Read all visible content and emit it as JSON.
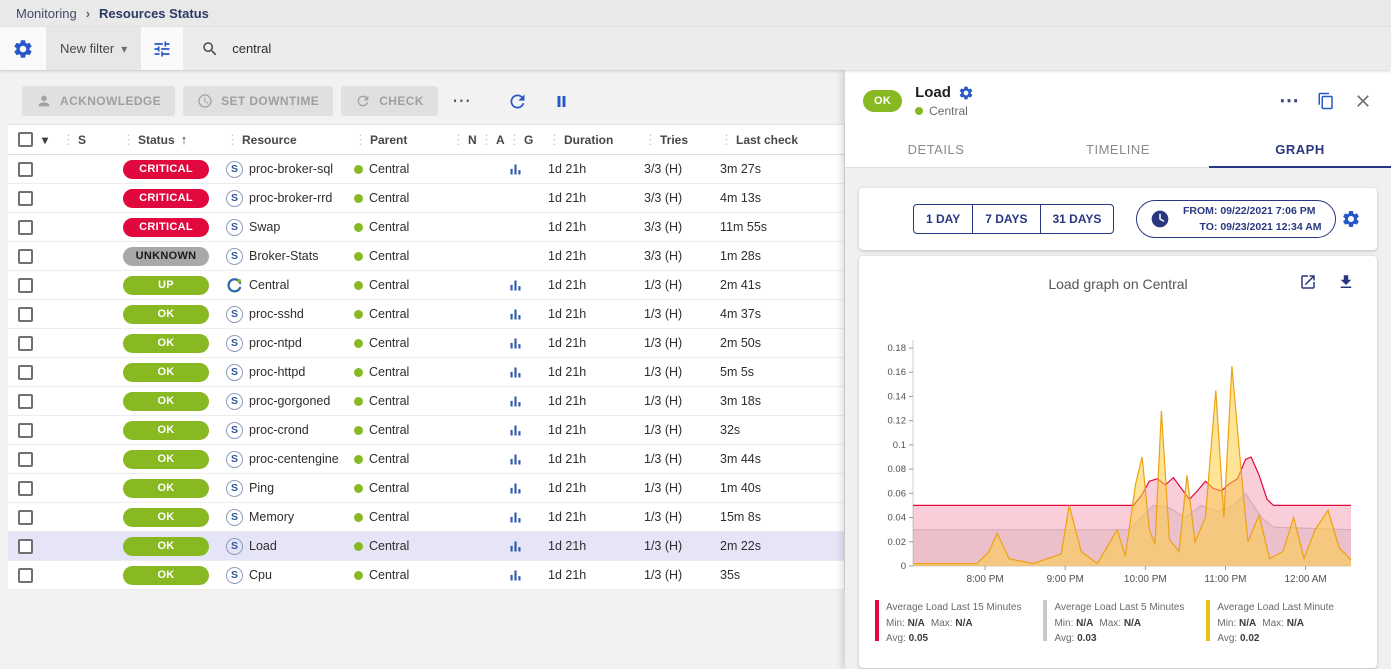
{
  "breadcrumb": {
    "items": [
      "Monitoring",
      "Resources Status"
    ]
  },
  "icons": {
    "caret_down": "▾",
    "drag_handle": "⋮",
    "more_horizontal": "⋯",
    "sort_ascending": "↑",
    "breadcrumb_separator": "›"
  },
  "colors": {
    "critical": "#e0083d",
    "unknown": "#a8a8a8",
    "ok": "#88b922",
    "accent_blue": "#2857c8",
    "navy": "#2a3780",
    "selected_row": "#e5e5f7"
  },
  "filter_bar": {
    "new_filter_label": "New filter",
    "search_value": "central"
  },
  "toolbar": {
    "acknowledge_label": "ACKNOWLEDGE",
    "set_downtime_label": "SET DOWNTIME",
    "check_label": "CHECK"
  },
  "table": {
    "columns": [
      "S",
      "Status",
      "Resource",
      "Parent",
      "N",
      "A",
      "G",
      "Duration",
      "Tries",
      "Last check"
    ],
    "sort_column": "Status",
    "sort_direction": "asc",
    "rows": [
      {
        "status": "CRITICAL",
        "type": "service",
        "resource": "proc-broker-sql",
        "parent": "Central",
        "graph": true,
        "duration": "1d 21h",
        "tries": "3/3 (H)",
        "last_check": "3m 27s",
        "selected": false
      },
      {
        "status": "CRITICAL",
        "type": "service",
        "resource": "proc-broker-rrd",
        "parent": "Central",
        "graph": false,
        "duration": "1d 21h",
        "tries": "3/3 (H)",
        "last_check": "4m 13s",
        "selected": false
      },
      {
        "status": "CRITICAL",
        "type": "service",
        "resource": "Swap",
        "parent": "Central",
        "graph": false,
        "duration": "1d 21h",
        "tries": "3/3 (H)",
        "last_check": "11m 55s",
        "selected": false
      },
      {
        "status": "UNKNOWN",
        "type": "service",
        "resource": "Broker-Stats",
        "parent": "Central",
        "graph": false,
        "duration": "1d 21h",
        "tries": "3/3 (H)",
        "last_check": "1m 28s",
        "selected": false
      },
      {
        "status": "UP",
        "type": "host",
        "resource": "Central",
        "parent": "Central",
        "graph": true,
        "duration": "1d 21h",
        "tries": "1/3 (H)",
        "last_check": "2m 41s",
        "selected": false
      },
      {
        "status": "OK",
        "type": "service",
        "resource": "proc-sshd",
        "parent": "Central",
        "graph": true,
        "duration": "1d 21h",
        "tries": "1/3 (H)",
        "last_check": "4m 37s",
        "selected": false
      },
      {
        "status": "OK",
        "type": "service",
        "resource": "proc-ntpd",
        "parent": "Central",
        "graph": true,
        "duration": "1d 21h",
        "tries": "1/3 (H)",
        "last_check": "2m 50s",
        "selected": false
      },
      {
        "status": "OK",
        "type": "service",
        "resource": "proc-httpd",
        "parent": "Central",
        "graph": true,
        "duration": "1d 21h",
        "tries": "1/3 (H)",
        "last_check": "5m 5s",
        "selected": false
      },
      {
        "status": "OK",
        "type": "service",
        "resource": "proc-gorgoned",
        "parent": "Central",
        "graph": true,
        "duration": "1d 21h",
        "tries": "1/3 (H)",
        "last_check": "3m 18s",
        "selected": false
      },
      {
        "status": "OK",
        "type": "service",
        "resource": "proc-crond",
        "parent": "Central",
        "graph": true,
        "duration": "1d 21h",
        "tries": "1/3 (H)",
        "last_check": "32s",
        "selected": false
      },
      {
        "status": "OK",
        "type": "service",
        "resource": "proc-centengine",
        "parent": "Central",
        "graph": true,
        "duration": "1d 21h",
        "tries": "1/3 (H)",
        "last_check": "3m 44s",
        "selected": false
      },
      {
        "status": "OK",
        "type": "service",
        "resource": "Ping",
        "parent": "Central",
        "graph": true,
        "duration": "1d 21h",
        "tries": "1/3 (H)",
        "last_check": "1m 40s",
        "selected": false
      },
      {
        "status": "OK",
        "type": "service",
        "resource": "Memory",
        "parent": "Central",
        "graph": true,
        "duration": "1d 21h",
        "tries": "1/3 (H)",
        "last_check": "15m 8s",
        "selected": false
      },
      {
        "status": "OK",
        "type": "service",
        "resource": "Load",
        "parent": "Central",
        "graph": true,
        "duration": "1d 21h",
        "tries": "1/3 (H)",
        "last_check": "2m 22s",
        "selected": true
      },
      {
        "status": "OK",
        "type": "service",
        "resource": "Cpu",
        "parent": "Central",
        "graph": true,
        "duration": "1d 21h",
        "tries": "1/3 (H)",
        "last_check": "35s",
        "selected": false
      }
    ]
  },
  "panel": {
    "status_badge": "OK",
    "title": "Load",
    "subtitle": "Central",
    "tabs": [
      {
        "label": "DETAILS",
        "active": false
      },
      {
        "label": "TIMELINE",
        "active": false
      },
      {
        "label": "GRAPH",
        "active": true
      }
    ],
    "time_range_buttons": [
      "1 DAY",
      "7 DAYS",
      "31 DAYS"
    ],
    "from_label": "FROM:",
    "from_value": "09/22/2021 7:06 PM",
    "to_label": "TO:",
    "to_value": "09/23/2021 12:34 AM"
  },
  "chart_data": {
    "type": "area",
    "title": "Load graph on Central",
    "xlim": [
      19.1,
      24.567
    ],
    "ylim": [
      0,
      0.18
    ],
    "yticks": [
      0,
      0.02,
      0.04,
      0.06,
      0.08,
      0.1,
      0.12,
      0.14,
      0.16,
      0.18
    ],
    "xticks": [
      20,
      21,
      22,
      23,
      24
    ],
    "xtick_labels": [
      "8:00 PM",
      "9:00 PM",
      "10:00 PM",
      "11:00 PM",
      "12:00 AM"
    ],
    "grid": false,
    "legend_position": "bottom",
    "series": [
      {
        "name": "Average Load Last 5 Minutes",
        "color": "#d4d4d4",
        "fill": "rgba(205,205,205,0.35)",
        "points": [
          [
            19.1,
            0.03
          ],
          [
            21.8,
            0.03
          ],
          [
            21.95,
            0.04
          ],
          [
            22.1,
            0.05
          ],
          [
            22.3,
            0.048
          ],
          [
            22.5,
            0.04
          ],
          [
            22.7,
            0.05
          ],
          [
            22.9,
            0.045
          ],
          [
            23.1,
            0.05
          ],
          [
            23.25,
            0.06
          ],
          [
            23.45,
            0.04
          ],
          [
            23.6,
            0.032
          ],
          [
            24.567,
            0.03
          ]
        ]
      },
      {
        "name": "Average Load Last 15 Minutes",
        "color": "#e0083d",
        "fill": "rgba(224,8,61,0.2)",
        "points": [
          [
            19.1,
            0.05
          ],
          [
            21.85,
            0.05
          ],
          [
            21.95,
            0.058
          ],
          [
            22.05,
            0.07
          ],
          [
            22.15,
            0.072
          ],
          [
            22.25,
            0.067
          ],
          [
            22.35,
            0.073
          ],
          [
            22.45,
            0.064
          ],
          [
            22.55,
            0.055
          ],
          [
            22.65,
            0.062
          ],
          [
            22.75,
            0.07
          ],
          [
            22.85,
            0.064
          ],
          [
            22.95,
            0.062
          ],
          [
            23.05,
            0.068
          ],
          [
            23.15,
            0.072
          ],
          [
            23.25,
            0.088
          ],
          [
            23.32,
            0.09
          ],
          [
            23.42,
            0.075
          ],
          [
            23.52,
            0.055
          ],
          [
            23.6,
            0.05
          ],
          [
            24.567,
            0.05
          ]
        ]
      },
      {
        "name": "Average Load Last Minute",
        "color": "#eda211",
        "fill": "rgba(252,205,66,0.55)",
        "points": [
          [
            19.1,
            0.002
          ],
          [
            19.9,
            0.002
          ],
          [
            20.05,
            0.012
          ],
          [
            20.15,
            0.027
          ],
          [
            20.3,
            0.006
          ],
          [
            20.6,
            0.002
          ],
          [
            20.95,
            0.01
          ],
          [
            21.05,
            0.05
          ],
          [
            21.2,
            0.012
          ],
          [
            21.4,
            0.002
          ],
          [
            21.65,
            0.03
          ],
          [
            21.75,
            0.008
          ],
          [
            21.88,
            0.068
          ],
          [
            21.96,
            0.09
          ],
          [
            22.05,
            0.03
          ],
          [
            22.12,
            0.018
          ],
          [
            22.2,
            0.128
          ],
          [
            22.3,
            0.022
          ],
          [
            22.42,
            0.012
          ],
          [
            22.52,
            0.075
          ],
          [
            22.62,
            0.02
          ],
          [
            22.75,
            0.04
          ],
          [
            22.88,
            0.145
          ],
          [
            22.98,
            0.04
          ],
          [
            23.08,
            0.165
          ],
          [
            23.18,
            0.09
          ],
          [
            23.28,
            0.02
          ],
          [
            23.42,
            0.042
          ],
          [
            23.55,
            0.006
          ],
          [
            23.72,
            0.012
          ],
          [
            23.85,
            0.04
          ],
          [
            23.98,
            0.006
          ],
          [
            24.12,
            0.03
          ],
          [
            24.28,
            0.046
          ],
          [
            24.42,
            0.015
          ],
          [
            24.567,
            0.005
          ]
        ]
      }
    ],
    "legend": [
      {
        "name": "Average Load Last 15 Minutes",
        "color": "#e0083d",
        "min": "N/A",
        "max": "N/A",
        "avg": "0.05"
      },
      {
        "name": "Average Load Last 5 Minutes",
        "color": "#c9c9c9",
        "min": "N/A",
        "max": "N/A",
        "avg": "0.03"
      },
      {
        "name": "Average Load Last Minute",
        "color": "#e9c10e",
        "min": "N/A",
        "max": "N/A",
        "avg": "0.02"
      }
    ]
  }
}
